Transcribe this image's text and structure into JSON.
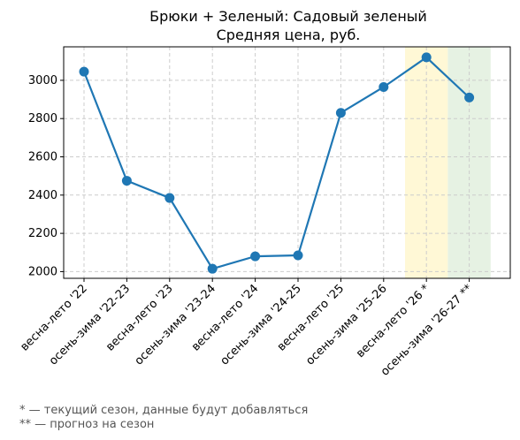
{
  "chart_data": {
    "type": "line",
    "title": "Брюки + Зеленый: Садовый зеленый",
    "subtitle": "Средняя цена, руб.",
    "xlabel": "",
    "ylabel": "",
    "categories": [
      "весна-лето '22",
      "осень-зима '22-23",
      "весна-лето '23",
      "осень-зима '23-24",
      "весна-лето '24",
      "осень-зима '24-25",
      "весна-лето '25",
      "осень-зима '25-26",
      "весна-лето '26 *",
      "осень-зима '26-27 **"
    ],
    "series": [
      {
        "values": [
          3045,
          2475,
          2385,
          2015,
          2080,
          2085,
          2830,
          2965,
          3120,
          2910
        ]
      }
    ],
    "ylim": [
      1965,
      3175
    ],
    "yticks": [
      2000,
      2200,
      2400,
      2600,
      2800,
      3000
    ],
    "grid": true,
    "highlights": [
      {
        "category_index": 8,
        "color": "#fff8d6"
      },
      {
        "category_index": 9,
        "color": "#e6f2e3"
      }
    ],
    "line_color": "#1f77b4"
  },
  "footnotes": [
    "* — текущий сезон, данные будут добавляться",
    "** — прогноз на сезон"
  ]
}
